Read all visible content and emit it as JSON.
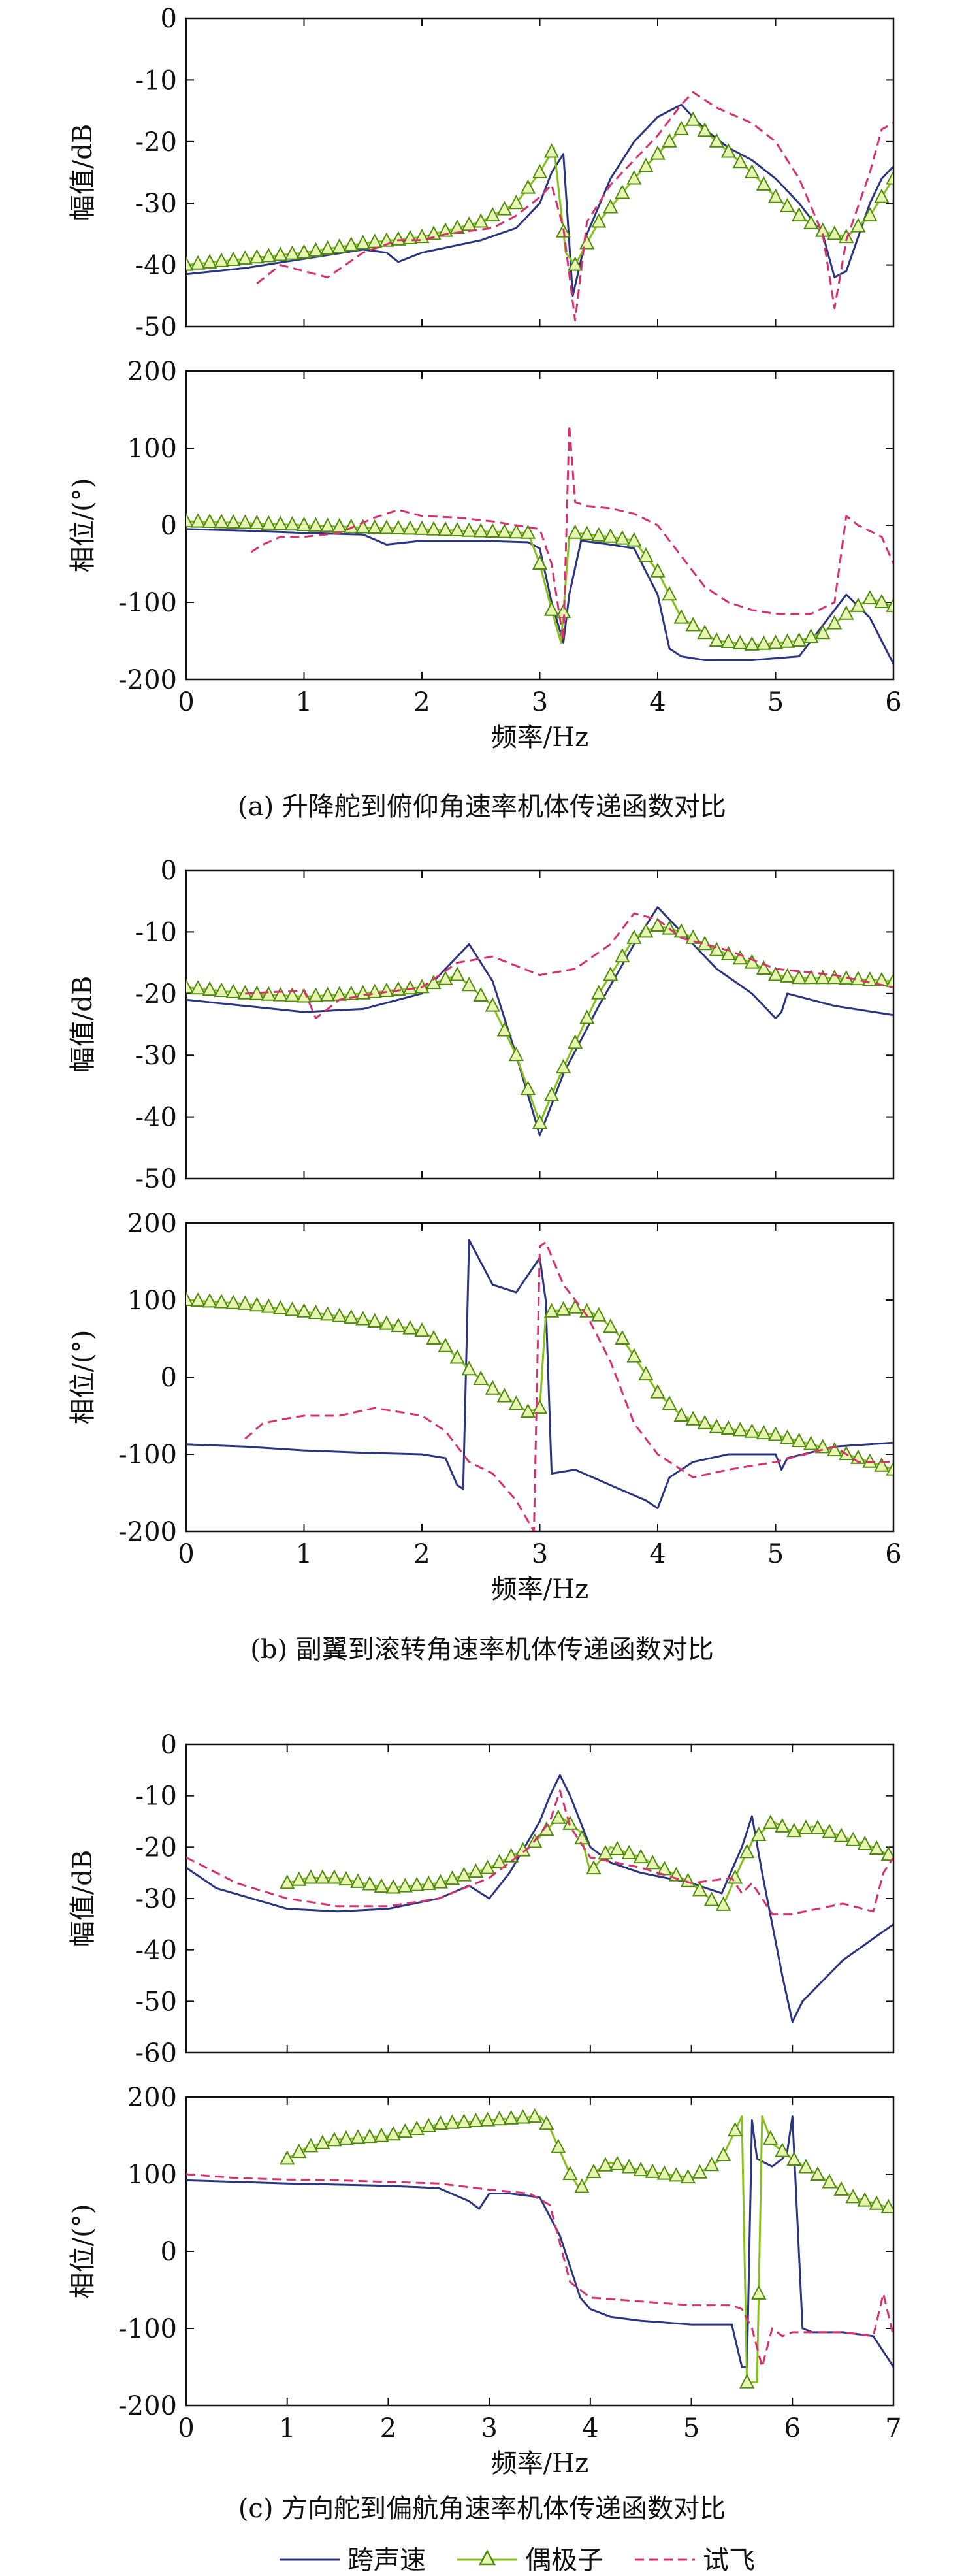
{
  "figure": {
    "captions": [
      "(a) 升降舵到俯仰角速率机体传递函数对比",
      "(b) 副翼到滚转角速率机体传递函数对比",
      "(c) 方向舵到偏航角速率机体传递函数对比"
    ],
    "legend": [
      "跨声速",
      "偶极子",
      "试飞"
    ]
  },
  "colors": {
    "transonic": "#2b3580",
    "dipole_line": "#86c11c",
    "dipole_marker_edge": "#4f8a10",
    "dipole_marker_fill": "#e8f5b0",
    "flight_test": "#d6336e",
    "axis": "#111111"
  },
  "chart_data": [
    {
      "id": "a-magnitude",
      "type": "line",
      "title": "",
      "xlabel": "",
      "ylabel": "幅值/dB",
      "xlim": [
        0,
        6
      ],
      "ylim": [
        -50,
        0
      ],
      "xticks": [],
      "yticks": [
        0,
        -10,
        -20,
        -30,
        -40,
        -50
      ],
      "series": [
        {
          "name": "跨声速",
          "x": [
            0,
            0.5,
            1,
            1.5,
            1.7,
            1.8,
            2.0,
            2.5,
            2.8,
            3.0,
            3.1,
            3.2,
            3.28,
            3.4,
            3.6,
            3.8,
            4.0,
            4.2,
            4.4,
            4.6,
            4.8,
            5.0,
            5.2,
            5.4,
            5.5,
            5.6,
            5.8,
            5.9,
            6.0
          ],
          "y": [
            -41.5,
            -40.5,
            -39,
            -37.5,
            -38,
            -39.5,
            -38,
            -36,
            -34,
            -30,
            -25,
            -22,
            -45,
            -35,
            -26,
            -20,
            -16,
            -14,
            -18,
            -21,
            -23,
            -26,
            -30,
            -35,
            -42,
            -41,
            -30,
            -26,
            -24
          ]
        },
        {
          "name": "偶极子",
          "x": [
            0,
            0.5,
            1,
            1.5,
            2.0,
            2.5,
            2.8,
            3.0,
            3.12,
            3.22,
            3.3,
            3.5,
            3.8,
            4.0,
            4.2,
            4.3,
            4.5,
            4.8,
            5.0,
            5.2,
            5.4,
            5.6,
            5.8,
            6.0
          ],
          "y": [
            -40,
            -39,
            -38,
            -36.5,
            -35.5,
            -33,
            -30,
            -25,
            -21,
            -38,
            -40,
            -33,
            -26,
            -22,
            -18,
            -16.5,
            -20,
            -25,
            -29,
            -32,
            -34.5,
            -35.5,
            -32,
            -26
          ]
        },
        {
          "name": "试飞",
          "x": [
            0.6,
            0.8,
            1.0,
            1.2,
            1.5,
            1.8,
            2.0,
            2.2,
            2.4,
            2.6,
            2.8,
            3.0,
            3.1,
            3.2,
            3.3,
            3.4,
            3.6,
            3.8,
            4.0,
            4.2,
            4.3,
            4.5,
            4.8,
            5.0,
            5.2,
            5.4,
            5.5,
            5.6,
            5.8,
            5.9,
            6.0
          ],
          "y": [
            -43,
            -40,
            -41,
            -42,
            -38,
            -36,
            -36,
            -35,
            -34.5,
            -34,
            -32,
            -29,
            -27,
            -34,
            -49,
            -33,
            -27,
            -23,
            -19,
            -14,
            -12,
            -14.5,
            -17,
            -20,
            -26,
            -35,
            -47,
            -36,
            -25,
            -18,
            -17
          ]
        }
      ]
    },
    {
      "id": "a-phase",
      "type": "line",
      "title": "",
      "xlabel": "频率/Hz",
      "ylabel": "相位/(°)",
      "xlim": [
        0,
        6
      ],
      "ylim": [
        -200,
        200
      ],
      "xticks": [
        0,
        1,
        2,
        3,
        4,
        5,
        6
      ],
      "yticks": [
        200,
        100,
        0,
        -100,
        -200
      ],
      "series": [
        {
          "name": "跨声速",
          "x": [
            0,
            0.5,
            1,
            1.5,
            1.7,
            2.0,
            2.5,
            2.9,
            3.0,
            3.1,
            3.2,
            3.25,
            3.35,
            3.6,
            3.8,
            4.0,
            4.1,
            4.2,
            4.4,
            4.8,
            5.2,
            5.4,
            5.6,
            5.8,
            6.0
          ],
          "y": [
            -5,
            -7,
            -10,
            -12,
            -25,
            -20,
            -20,
            -22,
            -30,
            -100,
            -152,
            -90,
            -20,
            -25,
            -30,
            -90,
            -160,
            -170,
            -175,
            -175,
            -170,
            -130,
            -90,
            -120,
            -180
          ]
        },
        {
          "name": "偶极子",
          "x": [
            0,
            0.5,
            1,
            1.5,
            2.0,
            2.5,
            2.9,
            3.0,
            3.1,
            3.18,
            3.25,
            3.3,
            3.6,
            3.8,
            4.0,
            4.2,
            4.5,
            4.8,
            5.0,
            5.2,
            5.4,
            5.6,
            5.8,
            6.0
          ],
          "y": [
            5,
            3,
            0,
            -3,
            -5,
            -8,
            -10,
            -50,
            -110,
            -152,
            -15,
            -10,
            -15,
            -20,
            -60,
            -120,
            -150,
            -155,
            -153,
            -150,
            -140,
            -115,
            -95,
            -105
          ]
        },
        {
          "name": "试飞",
          "x": [
            0.55,
            0.65,
            0.8,
            1.0,
            1.3,
            1.6,
            1.8,
            2.0,
            2.3,
            2.6,
            3.0,
            3.1,
            3.2,
            3.25,
            3.3,
            3.4,
            3.6,
            3.8,
            4.0,
            4.2,
            4.4,
            4.6,
            4.8,
            5.0,
            5.3,
            5.5,
            5.6,
            5.7,
            5.9,
            6.0
          ],
          "y": [
            -35,
            -25,
            -15,
            -15,
            -10,
            10,
            20,
            12,
            10,
            5,
            -5,
            -50,
            -150,
            130,
            30,
            25,
            22,
            15,
            0,
            -40,
            -80,
            -100,
            -110,
            -115,
            -115,
            -100,
            12,
            0,
            -15,
            -50
          ]
        }
      ]
    },
    {
      "id": "b-magnitude",
      "type": "line",
      "title": "",
      "xlabel": "",
      "ylabel": "幅值/dB",
      "xlim": [
        0,
        6
      ],
      "ylim": [
        -50,
        0
      ],
      "xticks": [],
      "yticks": [
        0,
        -10,
        -20,
        -30,
        -40,
        -50
      ],
      "series": [
        {
          "name": "跨声速",
          "x": [
            0,
            0.5,
            1,
            1.5,
            2.0,
            2.2,
            2.4,
            2.6,
            2.8,
            3.0,
            3.2,
            3.5,
            3.8,
            4.0,
            4.2,
            4.5,
            4.8,
            5.0,
            5.05,
            5.1,
            5.5,
            6.0
          ],
          "y": [
            -21,
            -22,
            -23,
            -22.5,
            -20,
            -16,
            -12,
            -18,
            -30,
            -43,
            -33,
            -22,
            -12,
            -6,
            -10,
            -16,
            -20,
            -24,
            -23,
            -20,
            -22,
            -23.5
          ]
        },
        {
          "name": "偶极子",
          "x": [
            0,
            0.5,
            1,
            1.5,
            2.0,
            2.3,
            2.6,
            2.8,
            3.0,
            3.2,
            3.5,
            3.8,
            4.0,
            4.2,
            4.5,
            4.8,
            5.0,
            5.2,
            5.5,
            6.0
          ],
          "y": [
            -19,
            -20,
            -20.5,
            -20,
            -19,
            -17,
            -22,
            -30,
            -41,
            -32,
            -20,
            -11,
            -9,
            -10,
            -13,
            -15,
            -17,
            -17.5,
            -17.5,
            -18
          ]
        },
        {
          "name": "试飞",
          "x": [
            0.5,
            1.0,
            1.1,
            1.3,
            1.6,
            2.0,
            2.3,
            2.6,
            3.0,
            3.3,
            3.6,
            3.8,
            4.0,
            4.2,
            4.6,
            5.0,
            5.5,
            6.0
          ],
          "y": [
            -20,
            -19.5,
            -24,
            -21,
            -20,
            -19,
            -15,
            -14,
            -17,
            -16,
            -12,
            -7,
            -8,
            -11,
            -13,
            -16,
            -17,
            -19
          ]
        }
      ]
    },
    {
      "id": "b-phase",
      "type": "line",
      "title": "",
      "xlabel": "频率/Hz",
      "ylabel": "相位/(°)",
      "xlim": [
        0,
        6
      ],
      "ylim": [
        -200,
        200
      ],
      "xticks": [
        0,
        1,
        2,
        3,
        4,
        5,
        6
      ],
      "yticks": [
        200,
        100,
        0,
        -100,
        -200
      ],
      "series": [
        {
          "name": "跨声速",
          "x": [
            0,
            0.5,
            1,
            1.5,
            2.0,
            2.2,
            2.3,
            2.35,
            2.4,
            2.6,
            2.8,
            3.0,
            3.05,
            3.1,
            3.3,
            3.6,
            3.9,
            4.0,
            4.1,
            4.3,
            4.6,
            5.0,
            5.05,
            5.1,
            5.5,
            6.0
          ],
          "y": [
            -87,
            -90,
            -95,
            -98,
            -100,
            -105,
            -140,
            -145,
            178,
            120,
            110,
            155,
            100,
            -125,
            -120,
            -140,
            -160,
            -170,
            -130,
            -110,
            -100,
            -100,
            -120,
            -105,
            -90,
            -85
          ]
        },
        {
          "name": "偶极子",
          "x": [
            0,
            0.5,
            1,
            1.5,
            2.0,
            2.2,
            2.4,
            2.6,
            2.8,
            2.9,
            3.0,
            3.05,
            3.1,
            3.3,
            3.5,
            3.7,
            4.0,
            4.2,
            4.5,
            5.0,
            5.5,
            6.0
          ],
          "y": [
            100,
            95,
            85,
            75,
            60,
            40,
            10,
            -15,
            -35,
            -45,
            -40,
            80,
            85,
            90,
            80,
            50,
            -20,
            -50,
            -65,
            -75,
            -95,
            -120
          ]
        },
        {
          "name": "试飞",
          "x": [
            0.5,
            0.65,
            0.8,
            1.0,
            1.3,
            1.6,
            2.0,
            2.2,
            2.4,
            2.6,
            2.8,
            2.95,
            3.0,
            3.05,
            3.2,
            3.4,
            3.6,
            3.8,
            4.0,
            4.3,
            4.6,
            5.0,
            5.5,
            5.7,
            6.0
          ],
          "y": [
            -80,
            -60,
            -55,
            -50,
            -50,
            -40,
            -50,
            -70,
            -110,
            -125,
            -160,
            -200,
            170,
            175,
            120,
            80,
            20,
            -60,
            -100,
            -130,
            -120,
            -110,
            -90,
            -110,
            -110
          ]
        }
      ]
    },
    {
      "id": "c-magnitude",
      "type": "line",
      "title": "",
      "xlabel": "",
      "ylabel": "幅值/dB",
      "xlim": [
        0,
        7
      ],
      "ylim": [
        -60,
        0
      ],
      "xticks": [],
      "yticks": [
        0,
        -10,
        -20,
        -30,
        -40,
        -50,
        -60
      ],
      "series": [
        {
          "name": "跨声速",
          "x": [
            0,
            0.3,
            1,
            1.5,
            2.0,
            2.5,
            2.8,
            3.0,
            3.2,
            3.5,
            3.6,
            3.7,
            3.8,
            4.0,
            4.2,
            4.5,
            5.0,
            5.3,
            5.5,
            5.6,
            5.7,
            5.9,
            6.0,
            6.1,
            6.5,
            7.0
          ],
          "y": [
            -24,
            -28,
            -32,
            -32.5,
            -32,
            -30,
            -27.5,
            -30,
            -25,
            -15,
            -10,
            -6,
            -10,
            -20,
            -23,
            -25,
            -27,
            -29,
            -20,
            -14,
            -25,
            -45,
            -54,
            -50,
            -42,
            -35
          ]
        },
        {
          "name": "偶极子",
          "x": [
            1.0,
            1.2,
            1.5,
            2.0,
            2.5,
            3.0,
            3.4,
            3.7,
            3.9,
            4.0,
            4.2,
            4.5,
            5.0,
            5.3,
            5.5,
            5.6,
            5.8,
            6.0,
            6.2,
            6.5,
            6.8,
            7.0
          ],
          "y": [
            -27,
            -26,
            -26,
            -28,
            -27,
            -24,
            -20,
            -14,
            -17,
            -25,
            -20,
            -22,
            -27,
            -32,
            -23,
            -19,
            -15,
            -17,
            -16,
            -18,
            -20,
            -22
          ]
        },
        {
          "name": "试飞",
          "x": [
            0,
            0.5,
            1,
            1.5,
            2.0,
            2.5,
            3.0,
            3.4,
            3.6,
            3.7,
            3.8,
            4.0,
            4.5,
            5.0,
            5.4,
            5.5,
            5.6,
            5.8,
            6.0,
            6.5,
            6.8,
            6.9,
            7.0
          ],
          "y": [
            -22,
            -27,
            -30,
            -31.5,
            -31.5,
            -30,
            -26,
            -20,
            -15,
            -9,
            -16,
            -22,
            -24,
            -27,
            -26,
            -29,
            -27,
            -33,
            -33,
            -31,
            -32.5,
            -25,
            -22
          ]
        }
      ]
    },
    {
      "id": "c-phase",
      "type": "line",
      "title": "",
      "xlabel": "频率/Hz",
      "ylabel": "相位/(°)",
      "xlim": [
        0,
        7
      ],
      "ylim": [
        -200,
        200
      ],
      "xticks": [
        0,
        1,
        2,
        3,
        4,
        5,
        6,
        7
      ],
      "yticks": [
        200,
        100,
        0,
        -100,
        -200
      ],
      "series": [
        {
          "name": "跨声速",
          "x": [
            0,
            1,
            2,
            2.5,
            2.8,
            2.9,
            3.0,
            3.2,
            3.5,
            3.7,
            3.9,
            4.0,
            4.2,
            4.5,
            5.0,
            5.4,
            5.5,
            5.55,
            5.6,
            5.65,
            5.8,
            5.9,
            5.95,
            6.0,
            6.1,
            6.2,
            6.5,
            6.8,
            7.0
          ],
          "y": [
            92,
            88,
            85,
            82,
            65,
            55,
            75,
            75,
            70,
            20,
            -60,
            -75,
            -85,
            -90,
            -95,
            -95,
            -150,
            -150,
            170,
            120,
            110,
            120,
            130,
            175,
            -100,
            -105,
            -105,
            -110,
            -150
          ]
        },
        {
          "name": "偶极子",
          "x": [
            1.0,
            1.2,
            1.5,
            2.0,
            2.5,
            3.0,
            3.5,
            3.6,
            3.7,
            3.8,
            3.9,
            4.0,
            4.2,
            4.5,
            5.0,
            5.3,
            5.5,
            5.55,
            5.65,
            5.7,
            5.8,
            6.0,
            6.3,
            6.6,
            7.0
          ],
          "y": [
            120,
            135,
            145,
            150,
            165,
            170,
            175,
            160,
            130,
            100,
            80,
            100,
            115,
            105,
            95,
            120,
            175,
            -170,
            -170,
            175,
            140,
            120,
            95,
            70,
            55
          ]
        },
        {
          "name": "试飞",
          "x": [
            0,
            0.5,
            1,
            1.5,
            2.0,
            2.5,
            3.0,
            3.4,
            3.6,
            3.7,
            3.8,
            4.0,
            4.5,
            5.0,
            5.4,
            5.5,
            5.6,
            5.7,
            5.8,
            5.9,
            6.0,
            6.5,
            6.8,
            6.9,
            7.0
          ],
          "y": [
            100,
            95,
            93,
            92,
            90,
            88,
            80,
            75,
            60,
            10,
            -40,
            -60,
            -65,
            -70,
            -70,
            -75,
            -100,
            -150,
            -100,
            -110,
            -105,
            -105,
            -110,
            -55,
            -110
          ]
        }
      ]
    }
  ]
}
